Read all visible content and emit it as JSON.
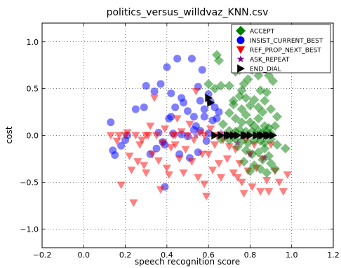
{
  "chart_data": {
    "type": "scatter",
    "title": "politics_versus_willdvaz_KNN.csv",
    "xlabel": "speech recognition score",
    "ylabel": "cost",
    "xlim": [
      -0.2,
      1.2
    ],
    "ylim": [
      -1.2,
      1.2
    ],
    "xticks": [
      "−0.2",
      "0.0",
      "0.2",
      "0.4",
      "0.6",
      "0.8",
      "1.0",
      "1.2"
    ],
    "yticks": [
      "−1.0",
      "−0.5",
      "0.0",
      "0.5",
      "1.0"
    ],
    "xtick_values": [
      -0.2,
      0.0,
      0.2,
      0.4,
      0.6,
      0.8,
      1.0,
      1.2
    ],
    "ytick_values": [
      -1.0,
      -0.5,
      0.0,
      0.5,
      1.0
    ],
    "grid": true,
    "legend_position": "top-right",
    "series": [
      {
        "name": "ACCEPT",
        "marker": "diamond",
        "color": "#008000",
        "points": [
          [
            0.64,
            0.86
          ],
          [
            0.65,
            0.8
          ],
          [
            0.6,
            0.55
          ],
          [
            0.63,
            0.5
          ],
          [
            0.66,
            0.53
          ],
          [
            0.7,
            0.53
          ],
          [
            0.73,
            0.68
          ],
          [
            0.75,
            0.7
          ],
          [
            0.77,
            0.55
          ],
          [
            0.79,
            0.6
          ],
          [
            0.81,
            0.7
          ],
          [
            0.84,
            0.64
          ],
          [
            0.89,
            0.64
          ],
          [
            0.91,
            0.58
          ],
          [
            0.85,
            0.48
          ],
          [
            0.88,
            0.46
          ],
          [
            0.75,
            0.42
          ],
          [
            0.78,
            0.4
          ],
          [
            0.72,
            0.33
          ],
          [
            0.76,
            0.28
          ],
          [
            0.8,
            0.32
          ],
          [
            0.82,
            0.38
          ],
          [
            0.84,
            0.3
          ],
          [
            0.86,
            0.25
          ],
          [
            0.9,
            0.28
          ],
          [
            0.93,
            0.2
          ],
          [
            0.7,
            0.24
          ],
          [
            0.73,
            0.18
          ],
          [
            0.76,
            0.14
          ],
          [
            0.78,
            0.22
          ],
          [
            0.8,
            0.14
          ],
          [
            0.82,
            0.1
          ],
          [
            0.84,
            0.18
          ],
          [
            0.87,
            0.1
          ],
          [
            0.89,
            0.08
          ],
          [
            0.92,
            0.1
          ],
          [
            0.67,
            0.12
          ],
          [
            0.7,
            0.05
          ],
          [
            0.73,
            0.04
          ],
          [
            0.75,
            0.06
          ],
          [
            0.78,
            0.04
          ],
          [
            0.81,
            0.04
          ],
          [
            0.84,
            0.05
          ],
          [
            0.86,
            0.03
          ],
          [
            0.88,
            0.04
          ],
          [
            0.9,
            0.02
          ],
          [
            0.66,
            -0.04
          ],
          [
            0.7,
            -0.05
          ],
          [
            0.73,
            -0.04
          ],
          [
            0.76,
            -0.06
          ],
          [
            0.79,
            -0.08
          ],
          [
            0.82,
            -0.05
          ],
          [
            0.85,
            -0.06
          ],
          [
            0.87,
            -0.08
          ],
          [
            0.9,
            -0.04
          ],
          [
            0.93,
            -0.1
          ],
          [
            0.97,
            -0.14
          ],
          [
            0.74,
            -0.12
          ],
          [
            0.78,
            -0.16
          ],
          [
            0.81,
            -0.2
          ],
          [
            0.84,
            -0.18
          ],
          [
            0.87,
            -0.14
          ],
          [
            0.89,
            -0.22
          ],
          [
            0.77,
            -0.28
          ],
          [
            0.82,
            -0.32
          ],
          [
            0.86,
            -0.26
          ],
          [
            0.9,
            -0.3
          ],
          [
            0.8,
            -0.38
          ],
          [
            0.85,
            -0.36
          ],
          [
            0.88,
            -0.4
          ],
          [
            0.92,
            -0.36
          ],
          [
            0.72,
            0.37
          ],
          [
            0.87,
            0.37
          ],
          [
            0.76,
            0.48
          ]
        ]
      },
      {
        "name": "INSIST_CURRENT_BEST",
        "marker": "circle",
        "color": "#0000ff",
        "points": [
          [
            0.13,
            0.14
          ],
          [
            0.14,
            -0.16
          ],
          [
            0.15,
            -0.21
          ],
          [
            0.18,
            -0.11
          ],
          [
            0.2,
            -0.05
          ],
          [
            0.21,
            0.0
          ],
          [
            0.25,
            0.28
          ],
          [
            0.29,
            0.3
          ],
          [
            0.3,
            0.53
          ],
          [
            0.32,
            -0.2
          ],
          [
            0.34,
            0.47
          ],
          [
            0.35,
            -0.14
          ],
          [
            0.36,
            0.03
          ],
          [
            0.37,
            0.55
          ],
          [
            0.38,
            -0.07
          ],
          [
            0.39,
            -0.1
          ],
          [
            0.4,
            0.73
          ],
          [
            0.41,
            0.18
          ],
          [
            0.42,
            0.45
          ],
          [
            0.43,
            0.02
          ],
          [
            0.44,
            0.3
          ],
          [
            0.45,
            0.82
          ],
          [
            0.46,
            -0.2
          ],
          [
            0.47,
            0.4
          ],
          [
            0.48,
            0.35
          ],
          [
            0.5,
            0.26
          ],
          [
            0.51,
            -0.24
          ],
          [
            0.52,
            0.82
          ],
          [
            0.53,
            0.2
          ],
          [
            0.54,
            0.1
          ],
          [
            0.55,
            0.52
          ],
          [
            0.56,
            0.37
          ],
          [
            0.57,
            0.7
          ],
          [
            0.58,
            0.28
          ],
          [
            0.59,
            -0.06
          ],
          [
            0.6,
            0.44
          ],
          [
            0.61,
            0.36
          ],
          [
            0.62,
            0.16
          ],
          [
            0.63,
            0.3
          ],
          [
            0.64,
            0.18
          ],
          [
            0.5,
            -0.01
          ],
          [
            0.53,
            0.06
          ],
          [
            0.55,
            -0.18
          ],
          [
            0.39,
            -0.55
          ],
          [
            0.58,
            0.2
          ],
          [
            0.42,
            0.2
          ],
          [
            0.47,
            0.01
          ],
          [
            0.56,
            0.05
          ],
          [
            0.6,
            0.02
          ],
          [
            0.65,
            0.25
          ]
        ]
      },
      {
        "name": "REF_PROP_NEXT_BEST",
        "marker": "triangle-down",
        "color": "#ff0000",
        "points": [
          [
            0.13,
            0.0
          ],
          [
            0.16,
            -0.06
          ],
          [
            0.18,
            -0.53
          ],
          [
            0.2,
            0.0
          ],
          [
            0.21,
            0.03
          ],
          [
            0.22,
            -0.22
          ],
          [
            0.23,
            -0.37
          ],
          [
            0.24,
            -0.72
          ],
          [
            0.25,
            0.0
          ],
          [
            0.27,
            -0.1
          ],
          [
            0.28,
            -0.05
          ],
          [
            0.29,
            -0.32
          ],
          [
            0.3,
            -0.4
          ],
          [
            0.31,
            0.0
          ],
          [
            0.32,
            0.1
          ],
          [
            0.33,
            -0.2
          ],
          [
            0.34,
            0.4
          ],
          [
            0.35,
            0.0
          ],
          [
            0.36,
            -0.27
          ],
          [
            0.37,
            -0.58
          ],
          [
            0.38,
            -0.08
          ],
          [
            0.39,
            0.07
          ],
          [
            0.4,
            -0.35
          ],
          [
            0.41,
            -0.42
          ],
          [
            0.42,
            -0.13
          ],
          [
            0.43,
            0.0
          ],
          [
            0.44,
            -0.1
          ],
          [
            0.45,
            0.18
          ],
          [
            0.46,
            -0.25
          ],
          [
            0.47,
            0.04
          ],
          [
            0.48,
            -0.4
          ],
          [
            0.49,
            -0.15
          ],
          [
            0.5,
            0.0
          ],
          [
            0.51,
            0.12
          ],
          [
            0.52,
            -0.28
          ],
          [
            0.53,
            -0.05
          ],
          [
            0.54,
            0.47
          ],
          [
            0.55,
            -0.45
          ],
          [
            0.56,
            0.03
          ],
          [
            0.57,
            -0.2
          ],
          [
            0.58,
            -0.52
          ],
          [
            0.59,
            -0.65
          ],
          [
            0.6,
            -0.2
          ],
          [
            0.61,
            0.07
          ],
          [
            0.62,
            -0.37
          ],
          [
            0.63,
            -0.1
          ],
          [
            0.64,
            0.0
          ],
          [
            0.65,
            -0.3
          ],
          [
            0.66,
            -0.45
          ],
          [
            0.67,
            -0.05
          ],
          [
            0.68,
            0.0
          ],
          [
            0.69,
            -0.25
          ],
          [
            0.7,
            -0.12
          ],
          [
            0.71,
            0.0
          ],
          [
            0.72,
            -0.4
          ],
          [
            0.73,
            -0.15
          ],
          [
            0.74,
            -0.45
          ],
          [
            0.75,
            -0.3
          ],
          [
            0.76,
            -0.5
          ],
          [
            0.77,
            -0.62
          ],
          [
            0.78,
            -0.05
          ],
          [
            0.79,
            -0.38
          ],
          [
            0.8,
            -0.2
          ],
          [
            0.81,
            -0.55
          ],
          [
            0.82,
            -0.1
          ],
          [
            0.83,
            -0.35
          ],
          [
            0.85,
            -0.6
          ],
          [
            0.86,
            -0.25
          ],
          [
            0.88,
            -0.48
          ],
          [
            0.89,
            -0.6
          ],
          [
            0.9,
            -0.1
          ],
          [
            0.92,
            -0.38
          ],
          [
            0.94,
            -0.5
          ],
          [
            0.96,
            -0.6
          ],
          [
            0.98,
            -0.42
          ],
          [
            0.3,
            0.0
          ],
          [
            0.44,
            0.0
          ],
          [
            0.58,
            0.0
          ],
          [
            0.17,
            0.0
          ],
          [
            0.26,
            -0.28
          ]
        ]
      },
      {
        "name": "ASK_REPEAT",
        "marker": "star",
        "color": "#800080",
        "points": [
          [
            0.38,
            -0.08
          ],
          [
            0.54,
            0.0
          ],
          [
            0.66,
            0.03
          ],
          [
            0.74,
            -0.08
          ],
          [
            0.87,
            -0.24
          ],
          [
            0.8,
            -0.2
          ]
        ]
      },
      {
        "name": "END_DIAL",
        "marker": "triangle-right",
        "color": "#000000",
        "points": [
          [
            0.6,
            0.4
          ],
          [
            0.61,
            0.35
          ],
          [
            0.63,
            0.0
          ],
          [
            0.66,
            0.0
          ],
          [
            0.69,
            0.0
          ],
          [
            0.72,
            0.0
          ],
          [
            0.74,
            0.0
          ],
          [
            0.77,
            0.0
          ],
          [
            0.8,
            0.0
          ],
          [
            0.83,
            0.0
          ],
          [
            0.86,
            0.0
          ],
          [
            0.89,
            0.0
          ],
          [
            0.91,
            0.0
          ],
          [
            0.7,
            0.0
          ],
          [
            0.78,
            0.0
          ],
          [
            0.85,
            0.0
          ],
          [
            0.88,
            0.0
          ]
        ]
      }
    ]
  }
}
